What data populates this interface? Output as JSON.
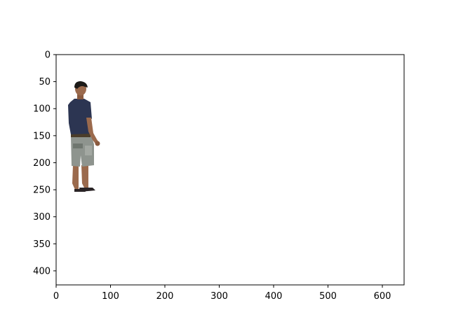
{
  "figure": {
    "x_ticks": [
      "0",
      "100",
      "200",
      "300",
      "400",
      "500",
      "600"
    ],
    "y_ticks": [
      "0",
      "50",
      "100",
      "150",
      "200",
      "250",
      "300",
      "350",
      "400"
    ],
    "xlim": [
      0,
      640
    ],
    "ylim": [
      426,
      0
    ],
    "y_axis_inverted": true,
    "image_content": "person standing, navy t-shirt, grey cargo shorts, sandals",
    "colors": {
      "shirt": "#2c3552",
      "shorts": "#8e948e",
      "skin": "#9b6a4d",
      "hair": "#1c1a18",
      "sandal": "#2a2426",
      "axes": "#000000"
    }
  }
}
